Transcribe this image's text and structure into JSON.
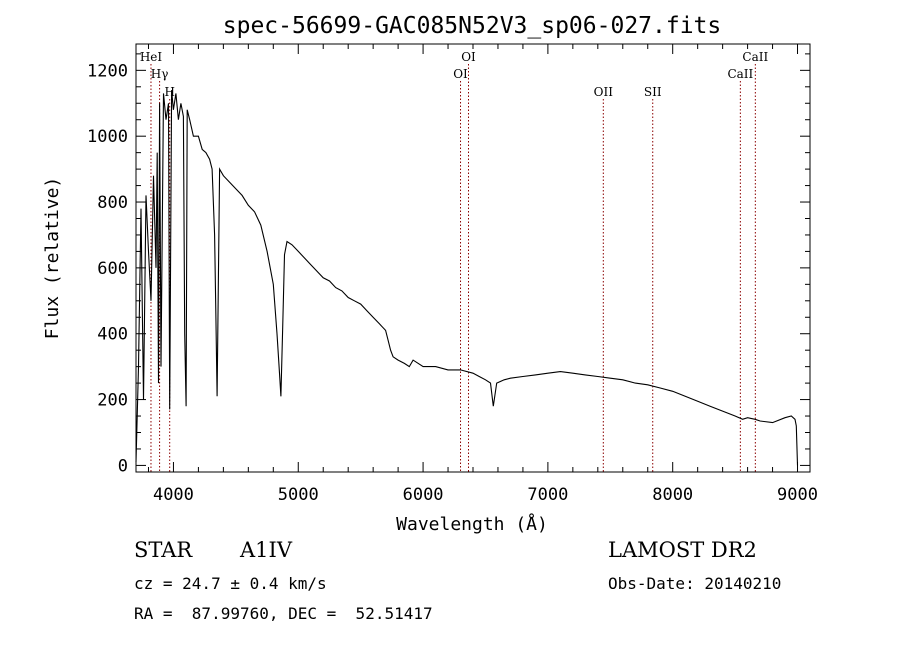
{
  "chart_data": {
    "type": "line",
    "title": "spec-56699-GAC085N52V3_sp06-027.fits",
    "xlabel": "Wavelength (Å)",
    "ylabel": "Flux (relative)",
    "xlim": [
      3700,
      9100
    ],
    "ylim": [
      -20,
      1280
    ],
    "x_ticks": [
      4000,
      5000,
      6000,
      7000,
      8000,
      9000
    ],
    "y_ticks": [
      0,
      200,
      400,
      600,
      800,
      1000,
      1200
    ],
    "grid": false,
    "legend": "none",
    "line_color": "#000000",
    "marker_color": "#8b0000",
    "series": [
      {
        "x": [
          3700,
          3720,
          3740,
          3760,
          3780,
          3800,
          3820,
          3840,
          3860,
          3870,
          3880,
          3889,
          3900,
          3920,
          3940,
          3960,
          3970,
          3985,
          4000,
          4020,
          4040,
          4060,
          4080,
          4090,
          4101,
          4110,
          4130,
          4160,
          4200,
          4230,
          4260,
          4290,
          4310,
          4330,
          4340,
          4350,
          4370,
          4400,
          4450,
          4500,
          4550,
          4600,
          4650,
          4700,
          4750,
          4800,
          4830,
          4850,
          4861,
          4875,
          4890,
          4910,
          4950,
          5000,
          5050,
          5100,
          5150,
          5200,
          5250,
          5300,
          5350,
          5400,
          5450,
          5500,
          5550,
          5600,
          5650,
          5700,
          5720,
          5740,
          5760,
          5800,
          5850,
          5890,
          5920,
          6000,
          6100,
          6200,
          6300,
          6400,
          6450,
          6500,
          6540,
          6563,
          6590,
          6650,
          6700,
          6800,
          6900,
          7000,
          7100,
          7200,
          7300,
          7400,
          7500,
          7600,
          7700,
          7800,
          7900,
          8000,
          8100,
          8200,
          8300,
          8400,
          8500,
          8560,
          8600,
          8660,
          8700,
          8800,
          8900,
          8950,
          8980,
          8990,
          9000
        ],
        "values": [
          10,
          300,
          780,
          200,
          820,
          650,
          500,
          880,
          600,
          950,
          250,
          1100,
          300,
          1130,
          1050,
          1100,
          170,
          1140,
          1080,
          1130,
          1050,
          1100,
          1060,
          400,
          180,
          1080,
          1050,
          1000,
          1000,
          960,
          950,
          930,
          900,
          700,
          450,
          210,
          900,
          880,
          860,
          840,
          820,
          790,
          770,
          730,
          650,
          550,
          400,
          280,
          210,
          420,
          640,
          680,
          670,
          650,
          630,
          610,
          590,
          570,
          560,
          540,
          530,
          510,
          500,
          490,
          470,
          450,
          430,
          410,
          380,
          350,
          330,
          320,
          310,
          300,
          320,
          300,
          300,
          290,
          290,
          280,
          270,
          260,
          250,
          180,
          250,
          260,
          265,
          270,
          275,
          280,
          285,
          280,
          275,
          270,
          265,
          260,
          250,
          245,
          235,
          225,
          210,
          195,
          180,
          165,
          150,
          140,
          145,
          140,
          135,
          130,
          145,
          150,
          140,
          120,
          0
        ]
      }
    ],
    "line_markers": [
      {
        "label": "HeI",
        "x": 3820,
        "tier": 1
      },
      {
        "label": "Hγ",
        "x": 3889,
        "tier": 2
      },
      {
        "label": "H",
        "x": 3970,
        "tier": 3
      },
      {
        "label": "OI",
        "x": 6300,
        "tier": 2
      },
      {
        "label": "OI",
        "x": 6364,
        "tier": 1
      },
      {
        "label": "OII",
        "x": 7444,
        "tier": 3
      },
      {
        "label": "SII",
        "x": 7840,
        "tier": 3
      },
      {
        "label": "CaII",
        "x": 8542,
        "tier": 2
      },
      {
        "label": "CaII",
        "x": 8662,
        "tier": 1
      }
    ]
  },
  "object_class": "STAR",
  "subclass": "A1IV",
  "survey": "LAMOST DR2",
  "cz": "cz = 24.7 ± 0.4 km/s",
  "obs_date": "Obs-Date: 20140210",
  "coords": "RA =  87.99760, DEC =  52.51417"
}
